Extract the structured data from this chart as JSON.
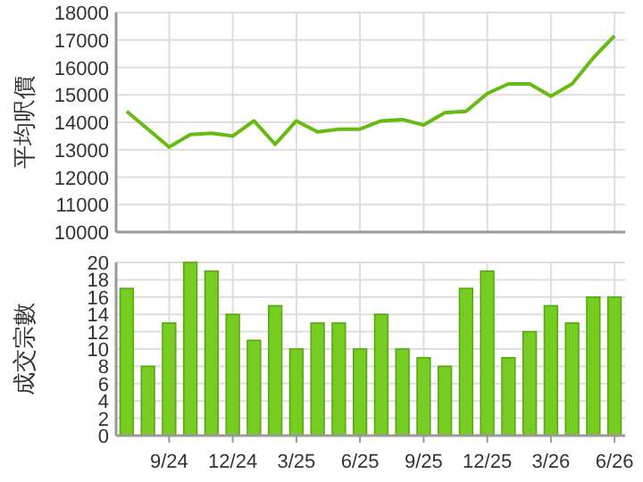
{
  "chart_data": [
    {
      "type": "line",
      "ylabel": "平均呎價",
      "categories": [
        null,
        null,
        null,
        null,
        null,
        null,
        null,
        null,
        null,
        null,
        null,
        null,
        null,
        null,
        null,
        null,
        null,
        null,
        null,
        null,
        null,
        null,
        null,
        null
      ],
      "series": [
        {
          "color": "#66bb11",
          "values": [
            14400,
            13750,
            13100,
            13550,
            13600,
            13500,
            14050,
            13200,
            14050,
            13650,
            13750,
            13750,
            14050,
            14100,
            13900,
            14350,
            14400,
            15050,
            15400,
            15400,
            14950,
            15400,
            16350,
            17150
          ]
        }
      ],
      "ylim": [
        10000,
        18000
      ],
      "yticks": [
        10000,
        11000,
        12000,
        13000,
        14000,
        15000,
        16000,
        17000,
        18000
      ],
      "grid": true,
      "tick_labels": "y",
      "marker": "none"
    },
    {
      "type": "bar",
      "ylabel": "成交宗數",
      "categories": [
        null,
        null,
        "9/24",
        null,
        null,
        "12/24",
        null,
        null,
        "3/25",
        null,
        null,
        "6/25",
        null,
        null,
        "9/25",
        null,
        null,
        "12/25",
        null,
        null,
        "3/26",
        null,
        null,
        "6/26"
      ],
      "series": [
        {
          "color": "#77cc22",
          "values": [
            17,
            8,
            13,
            20,
            19,
            14,
            11,
            15,
            10,
            13,
            13,
            10,
            14,
            10,
            9,
            8,
            17,
            19,
            9,
            12,
            15,
            13,
            16,
            16
          ]
        }
      ],
      "ylim": [
        0,
        20
      ],
      "yticks": [
        0,
        2,
        4,
        6,
        8,
        10,
        12,
        14,
        16,
        18,
        20
      ],
      "grid": true
    }
  ]
}
